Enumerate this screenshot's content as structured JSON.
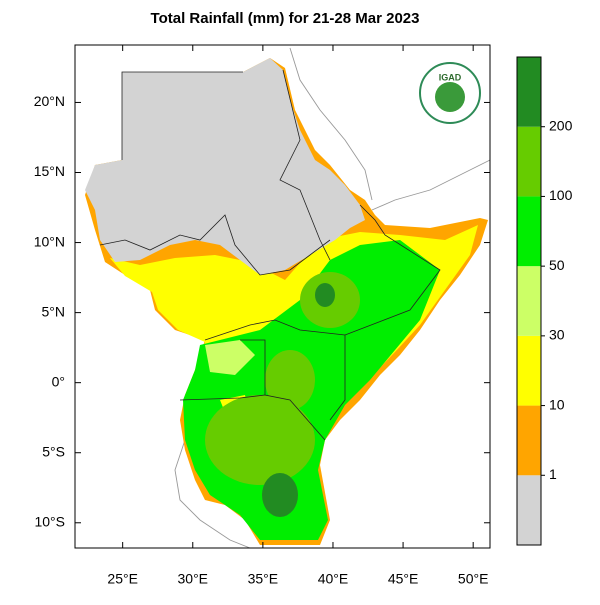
{
  "title": "Total Rainfall (mm) for 21-28 Mar 2023",
  "logo_text": "IGAD",
  "map": {
    "xlim": [
      21.6,
      51.2
    ],
    "ylim": [
      -11.8,
      24.1
    ],
    "xticks": [
      {
        "value": 25,
        "label": "25°E"
      },
      {
        "value": 30,
        "label": "30°E"
      },
      {
        "value": 35,
        "label": "35°E"
      },
      {
        "value": 40,
        "label": "40°E"
      },
      {
        "value": 45,
        "label": "45°E"
      },
      {
        "value": 50,
        "label": "50°E"
      }
    ],
    "yticks": [
      {
        "value": 20,
        "label": "20°N"
      },
      {
        "value": 15,
        "label": "15°N"
      },
      {
        "value": 10,
        "label": "10°N"
      },
      {
        "value": 5,
        "label": "5°N"
      },
      {
        "value": 0,
        "label": "0°"
      },
      {
        "value": -5,
        "label": "5°S"
      },
      {
        "value": -10,
        "label": "10°S"
      }
    ]
  },
  "colorbar": {
    "colors": [
      "#d3d3d3",
      "#ffa500",
      "#ffff00",
      "#ccff66",
      "#00ee00",
      "#66cc00",
      "#228b22"
    ],
    "ticks": [
      1,
      10,
      30,
      50,
      100,
      200
    ]
  }
}
